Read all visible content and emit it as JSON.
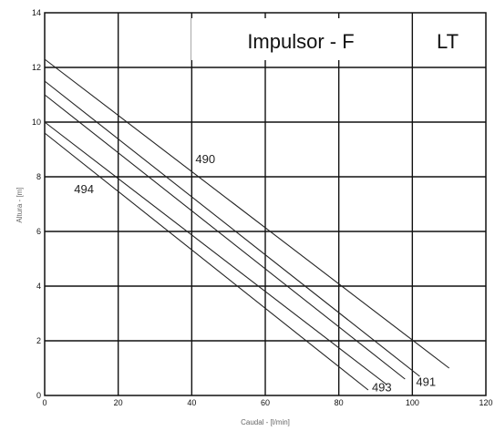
{
  "chart_data": {
    "type": "line",
    "title": "Impulsor - F",
    "badge": "LT",
    "xlabel": "Caudal - [l/min]",
    "ylabel": "Altura - [m]",
    "xlim": [
      0,
      120
    ],
    "ylim": [
      0,
      14
    ],
    "x_ticks": [
      0,
      20,
      40,
      60,
      80,
      100,
      120
    ],
    "y_ticks": [
      0,
      2,
      4,
      6,
      8,
      10,
      12,
      14
    ],
    "grid": true,
    "colors": {
      "line": "#222222",
      "grid": "#111111",
      "frame": "#111111"
    },
    "series": [
      {
        "name": "490",
        "x": [
          0,
          110
        ],
        "y": [
          12.3,
          1.0
        ]
      },
      {
        "name": "491",
        "x": [
          0,
          102
        ],
        "y": [
          11.5,
          0.7
        ]
      },
      {
        "name": "493",
        "x": [
          0,
          98
        ],
        "y": [
          11.0,
          0.6
        ]
      },
      {
        "name": "",
        "x": [
          0,
          93
        ],
        "y": [
          10.0,
          0.4
        ]
      },
      {
        "name": "494",
        "x": [
          0,
          88
        ],
        "y": [
          9.6,
          0.2
        ]
      }
    ],
    "annotations": [
      {
        "text": "490",
        "x": 41,
        "y": 8.5
      },
      {
        "text": "494",
        "x": 8,
        "y": 7.4
      },
      {
        "text": "493",
        "x": 89,
        "y": 0.15
      },
      {
        "text": "491",
        "x": 101,
        "y": 0.35
      }
    ]
  }
}
